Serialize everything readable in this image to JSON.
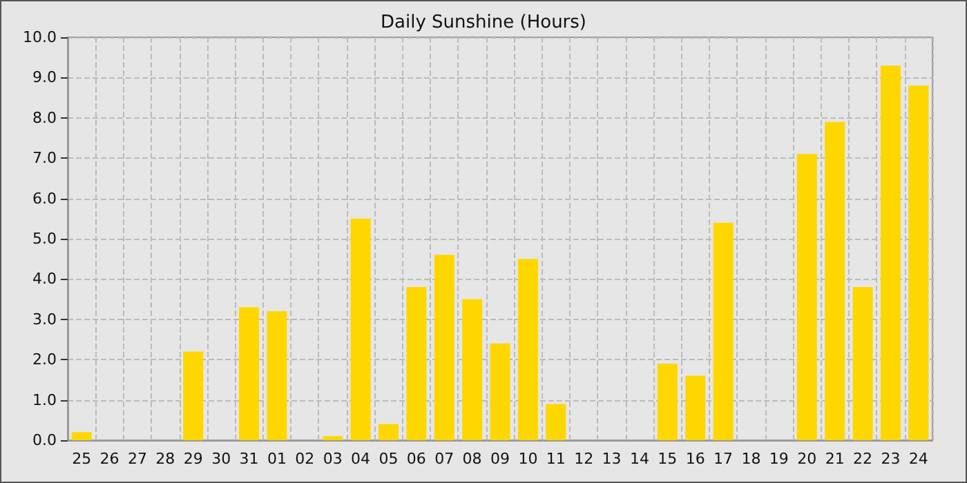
{
  "chart_data": {
    "type": "bar",
    "title": "Daily Sunshine (Hours)",
    "categories": [
      "25",
      "26",
      "27",
      "28",
      "29",
      "30",
      "31",
      "01",
      "02",
      "03",
      "04",
      "05",
      "06",
      "07",
      "08",
      "09",
      "10",
      "11",
      "12",
      "13",
      "14",
      "15",
      "16",
      "17",
      "18",
      "19",
      "20",
      "21",
      "22",
      "23",
      "24"
    ],
    "values": [
      0.2,
      0,
      0,
      0,
      2.2,
      0,
      3.3,
      3.2,
      0,
      0.1,
      5.5,
      0.4,
      3.8,
      4.6,
      3.5,
      2.4,
      4.5,
      0.9,
      0,
      0,
      0,
      1.9,
      1.6,
      5.4,
      0,
      0,
      7.1,
      7.9,
      3.8,
      9.3,
      8.8
    ],
    "color": "#ffd700",
    "ylim": [
      0,
      10
    ],
    "yticks": [
      {
        "value": 0,
        "label": "0.0"
      },
      {
        "value": 1,
        "label": "1.0"
      },
      {
        "value": 2,
        "label": "2.0"
      },
      {
        "value": 3,
        "label": "3.0"
      },
      {
        "value": 4,
        "label": "4.0"
      },
      {
        "value": 5,
        "label": "5.0"
      },
      {
        "value": 6,
        "label": "6.0"
      },
      {
        "value": 7,
        "label": "7.0"
      },
      {
        "value": 8,
        "label": "8.0"
      },
      {
        "value": 9,
        "label": "9.0"
      },
      {
        "value": 10,
        "label": "10.0"
      }
    ],
    "grid": true
  }
}
